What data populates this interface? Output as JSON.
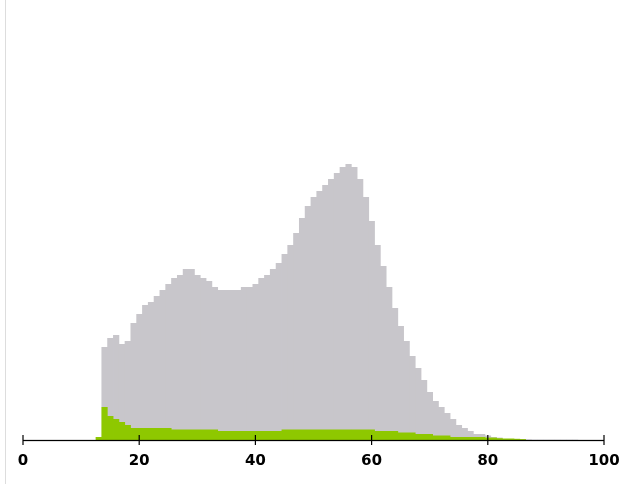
{
  "chart_data": {
    "type": "area",
    "title": "",
    "xlabel": "",
    "ylabel": "",
    "xlim": [
      0,
      100
    ],
    "ylim": [
      0,
      100
    ],
    "x_ticks": [
      0,
      20,
      40,
      60,
      80,
      100
    ],
    "x_tick_labels": [
      "0",
      "20",
      "40",
      "60",
      "80",
      "100"
    ],
    "grid": false,
    "legend": "none",
    "bin_width": 1,
    "series": [
      {
        "color": "#c8c6cb",
        "x": [
          14,
          15,
          16,
          17,
          18,
          19,
          20,
          21,
          22,
          23,
          24,
          25,
          26,
          27,
          28,
          29,
          30,
          31,
          32,
          33,
          34,
          35,
          36,
          37,
          38,
          39,
          40,
          41,
          42,
          43,
          44,
          45,
          46,
          47,
          48,
          49,
          50,
          51,
          52,
          53,
          54,
          55,
          56,
          57,
          58,
          59,
          60,
          61,
          62,
          63,
          64,
          65,
          66,
          67,
          68,
          69,
          70,
          71,
          72,
          73,
          74,
          75,
          76,
          77,
          78,
          79,
          80,
          81,
          82,
          83,
          84,
          85,
          86,
          87,
          88,
          89,
          90,
          91,
          92,
          93,
          94,
          95
        ],
        "values": [
          31,
          34,
          35,
          32,
          33,
          39,
          42,
          45,
          46,
          48,
          50,
          52,
          54,
          55,
          57,
          57,
          55,
          54,
          53,
          51,
          50,
          50,
          50,
          50,
          51,
          51,
          52,
          54,
          55,
          57,
          59,
          62,
          65,
          69,
          74,
          78,
          81,
          83,
          85,
          87,
          89,
          91,
          92,
          91,
          87,
          81,
          73,
          65,
          58,
          51,
          44,
          38,
          33,
          28,
          24,
          20,
          16,
          13,
          11,
          9,
          7,
          5,
          4,
          3,
          2,
          2,
          1.5,
          1,
          0.8,
          0.5,
          0.4,
          0.3,
          0.2,
          0.2,
          0.1,
          0.1,
          0.1,
          0.1,
          0.1,
          0.1,
          0.1,
          0.1
        ]
      },
      {
        "color": "#8ec800",
        "x": [
          13,
          14,
          15,
          16,
          17,
          18,
          19,
          20,
          21,
          22,
          23,
          24,
          25,
          26,
          27,
          28,
          29,
          30,
          31,
          32,
          33,
          34,
          35,
          36,
          37,
          38,
          39,
          40,
          41,
          42,
          43,
          44,
          45,
          46,
          47,
          48,
          49,
          50,
          51,
          52,
          53,
          54,
          55,
          56,
          57,
          58,
          59,
          60,
          61,
          62,
          63,
          64,
          65,
          66,
          67,
          68,
          69,
          70,
          71,
          72,
          73,
          74,
          75,
          76,
          77,
          78,
          79,
          80,
          81,
          82,
          83,
          84,
          85,
          86
        ],
        "values": [
          1,
          11,
          8,
          7,
          6,
          5,
          4,
          4,
          4,
          4,
          4,
          4,
          4,
          3.5,
          3.5,
          3.5,
          3.5,
          3.5,
          3.5,
          3.5,
          3.5,
          3,
          3,
          3,
          3,
          3,
          3,
          3,
          3,
          3,
          3,
          3,
          3.5,
          3.5,
          3.5,
          3.5,
          3.5,
          3.5,
          3.5,
          3.5,
          3.5,
          3.5,
          3.5,
          3.5,
          3.5,
          3.5,
          3.5,
          3.5,
          3,
          3,
          3,
          3,
          2.5,
          2.5,
          2.5,
          2,
          2,
          2,
          1.5,
          1.5,
          1.5,
          1,
          1,
          1,
          1,
          1,
          1,
          0.8,
          0.8,
          0.6,
          0.5,
          0.5,
          0.4,
          0.3
        ]
      }
    ]
  }
}
